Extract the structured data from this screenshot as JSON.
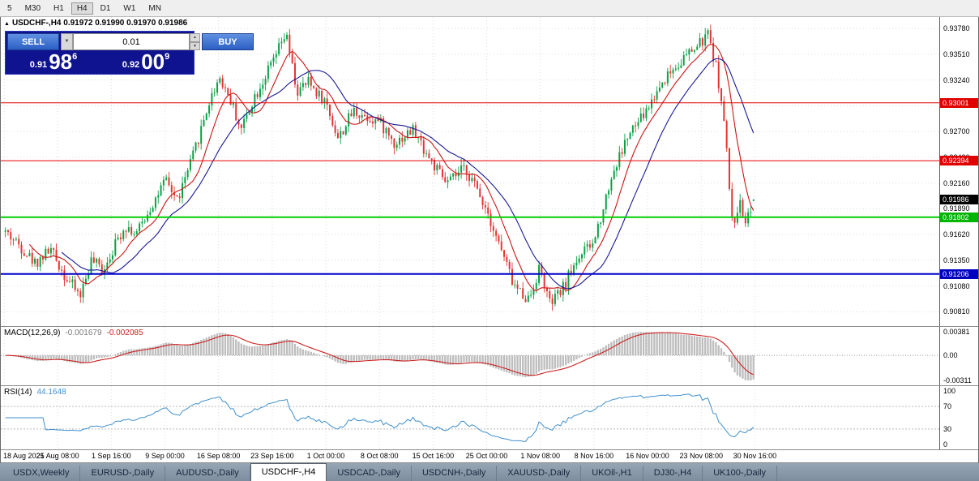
{
  "toolbar": {
    "timeframes": [
      "5",
      "M30",
      "H1",
      "H4",
      "D1",
      "W1",
      "MN"
    ],
    "active": "H4"
  },
  "chart_header": {
    "collapse": "▲",
    "title": "USDCHF-,H4",
    "open": "0.91972",
    "high": "0.91990",
    "low": "0.91970",
    "close": "0.91986"
  },
  "trade_panel": {
    "sell_label": "SELL",
    "buy_label": "BUY",
    "lot_value": "0.01",
    "dropdown_icon": "▼",
    "spin_up_icon": "▲",
    "spin_down_icon": "▼",
    "sell_price": {
      "prefix": "0.91",
      "big": "98",
      "sup": "6"
    },
    "buy_price": {
      "prefix": "0.92",
      "big": "00",
      "sup": "9"
    }
  },
  "price_axis": {
    "badges": [
      {
        "text": "0.93001",
        "price": 0.93001,
        "bg": "#e00000",
        "fg": "#ffffff"
      },
      {
        "text": "0.92394",
        "price": 0.92394,
        "bg": "#e00000",
        "fg": "#ffffff"
      },
      {
        "text": "0.91986",
        "price": 0.91986,
        "bg": "#000000",
        "fg": "#ffffff"
      },
      {
        "text": "0.91802",
        "price": 0.91802,
        "bg": "#00b400",
        "fg": "#ffffff"
      },
      {
        "text": "0.91206",
        "price": 0.91206,
        "bg": "#0000c0",
        "fg": "#ffffff"
      }
    ]
  },
  "hlines": [
    {
      "price": 0.93001,
      "color": "#e60000",
      "width": 1
    },
    {
      "price": 0.92394,
      "color": "#e60000",
      "width": 1
    },
    {
      "price": 0.91802,
      "color": "#00ce00",
      "width": 2
    },
    {
      "price": 0.91206,
      "color": "#0000c8",
      "width": 2
    }
  ],
  "macd": {
    "name": "MACD(12,26,9)",
    "value1": "-0.001679",
    "value2": "-0.002085",
    "axis_labels": [
      "0.00381",
      "0.00",
      "-0.00311"
    ]
  },
  "rsi": {
    "name": "RSI(14)",
    "value": "44.1648",
    "axis_labels": [
      "100",
      "70",
      "30",
      "0"
    ],
    "levels": [
      70,
      30
    ]
  },
  "chart_data": {
    "type": "candlestick",
    "symbol": "USDCHF-",
    "timeframe": "H4",
    "title": "USDCHF-,H4",
    "current": {
      "open": 0.91972,
      "high": 0.9199,
      "low": 0.9197,
      "close": 0.91986
    },
    "y_range": [
      0.9066,
      0.939
    ],
    "axis_ticks": [
      0.9378,
      0.9351,
      0.9324,
      0.9297,
      0.927,
      0.9243,
      0.9216,
      0.9189,
      0.9162,
      0.9135,
      0.9108,
      0.9081
    ],
    "time_labels": [
      "18 Aug 2021",
      "25 Aug 08:00",
      "1 Sep 16:00",
      "9 Sep 00:00",
      "16 Sep 08:00",
      "23 Sep 16:00",
      "1 Oct 00:00",
      "8 Oct 08:00",
      "15 Oct 16:00",
      "25 Oct 00:00",
      "1 Nov 08:00",
      "8 Nov 16:00",
      "16 Nov 00:00",
      "23 Nov 08:00",
      "30 Nov 16:00"
    ],
    "plot_fraction": 0.8,
    "candle_count": 280,
    "seed": 42,
    "price_path": [
      [
        0.0,
        0.9165
      ],
      [
        0.02,
        0.915
      ],
      [
        0.04,
        0.9132
      ],
      [
        0.06,
        0.9147
      ],
      [
        0.08,
        0.9118
      ],
      [
        0.1,
        0.9098
      ],
      [
        0.115,
        0.9135
      ],
      [
        0.13,
        0.9125
      ],
      [
        0.143,
        0.9146
      ],
      [
        0.16,
        0.9172
      ],
      [
        0.175,
        0.9162
      ],
      [
        0.19,
        0.9185
      ],
      [
        0.214,
        0.9218
      ],
      [
        0.23,
        0.9198
      ],
      [
        0.25,
        0.9242
      ],
      [
        0.27,
        0.9295
      ],
      [
        0.286,
        0.9328
      ],
      [
        0.3,
        0.9305
      ],
      [
        0.315,
        0.9272
      ],
      [
        0.33,
        0.9302
      ],
      [
        0.357,
        0.9342
      ],
      [
        0.375,
        0.9372
      ],
      [
        0.39,
        0.931
      ],
      [
        0.405,
        0.9322
      ],
      [
        0.4286,
        0.93
      ],
      [
        0.445,
        0.9262
      ],
      [
        0.465,
        0.9292
      ],
      [
        0.5,
        0.928
      ],
      [
        0.52,
        0.9258
      ],
      [
        0.545,
        0.9272
      ],
      [
        0.571,
        0.9236
      ],
      [
        0.59,
        0.9215
      ],
      [
        0.615,
        0.9232
      ],
      [
        0.6429,
        0.919
      ],
      [
        0.66,
        0.9152
      ],
      [
        0.68,
        0.9108
      ],
      [
        0.7,
        0.9094
      ],
      [
        0.7143,
        0.9128
      ],
      [
        0.728,
        0.9088
      ],
      [
        0.745,
        0.9105
      ],
      [
        0.765,
        0.9138
      ],
      [
        0.7857,
        0.9152
      ],
      [
        0.81,
        0.9222
      ],
      [
        0.83,
        0.9262
      ],
      [
        0.857,
        0.9292
      ],
      [
        0.88,
        0.9325
      ],
      [
        0.9,
        0.9342
      ],
      [
        0.9286,
        0.9362
      ],
      [
        0.94,
        0.9372
      ],
      [
        0.952,
        0.933
      ],
      [
        0.962,
        0.927
      ],
      [
        0.972,
        0.9168
      ],
      [
        0.98,
        0.9196
      ],
      [
        0.99,
        0.9178
      ],
      [
        1.0,
        0.91986
      ]
    ],
    "moving_averages": [
      {
        "period": 10,
        "color": "#cc1414"
      },
      {
        "period": 22,
        "color": "#181894"
      }
    ],
    "colors": {
      "up": "#0aa048",
      "down": "#e23434",
      "grid": "#dcdcdc",
      "macd_hist": "#bdbdbd",
      "macd_signal": "#cc2020",
      "rsi_line": "#3f8fce",
      "level_dotted": "#b9b9b9"
    },
    "indicators": [
      {
        "name": "MACD",
        "params": [
          12,
          26,
          9
        ],
        "display_values": [
          -0.001679,
          -0.002085
        ],
        "axis_range": [
          -0.00311,
          0.00381
        ]
      },
      {
        "name": "RSI",
        "params": [
          14
        ],
        "display_value": 44.1648,
        "axis_range": [
          0,
          100
        ],
        "levels": [
          70,
          30
        ]
      }
    ]
  },
  "bottom_tabs": {
    "active_index": 3,
    "items": [
      "USDX,Weekly",
      "EURUSD-,Daily",
      "AUDUSD-,Daily",
      "USDCHF-,H4",
      "USDCAD-,Daily",
      "USDCNH-,Daily",
      "XAUUSD-,Daily",
      "UKOil-,H1",
      "DJ30-,H4",
      "UK100-,Daily"
    ]
  }
}
